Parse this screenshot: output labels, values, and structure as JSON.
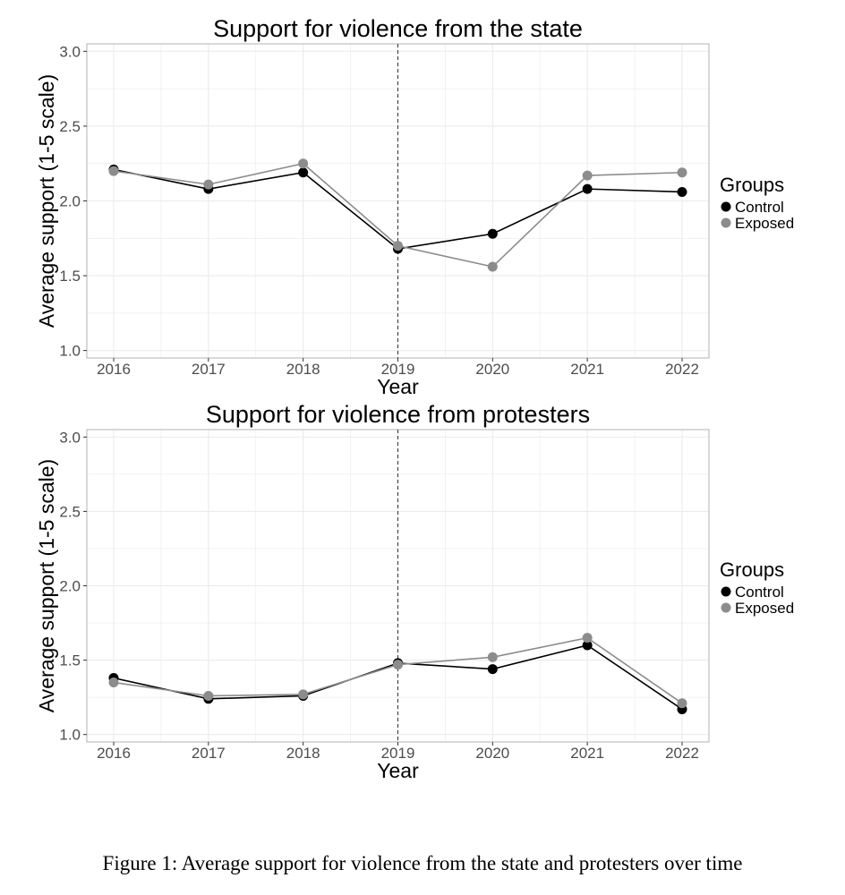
{
  "caption": "Figure 1: Average support for violence from the state and protesters over time",
  "colors": {
    "control": "#000000",
    "exposed": "#8c8c8c",
    "grid": "#ebebeb",
    "frame": "#b3b3b3"
  },
  "chart_data": [
    {
      "type": "line",
      "title": "Support for violence from the state",
      "xlabel": "Year",
      "ylabel": "Average support (1-5 scale)",
      "x": [
        2016,
        2017,
        2018,
        2019,
        2020,
        2021,
        2022
      ],
      "x_tick_labels": [
        "2016",
        "2017",
        "2018",
        "2019",
        "2020",
        "2021",
        "2022"
      ],
      "y_tick_labels": [
        "1.0",
        "1.5",
        "2.0",
        "2.5",
        "3.0"
      ],
      "ylim": [
        0.95,
        3.05
      ],
      "grid": true,
      "vline": 2019,
      "legend_title": "Groups",
      "legend_placement": "right",
      "series": [
        {
          "name": "Control",
          "values": [
            2.21,
            2.08,
            2.19,
            1.68,
            1.78,
            2.08,
            2.06
          ]
        },
        {
          "name": "Exposed",
          "values": [
            2.2,
            2.11,
            2.25,
            1.7,
            1.56,
            2.17,
            2.19
          ]
        }
      ]
    },
    {
      "type": "line",
      "title": "Support for violence from protesters",
      "xlabel": "Year",
      "ylabel": "Average support (1-5 scale)",
      "x": [
        2016,
        2017,
        2018,
        2019,
        2020,
        2021,
        2022
      ],
      "x_tick_labels": [
        "2016",
        "2017",
        "2018",
        "2019",
        "2020",
        "2021",
        "2022"
      ],
      "y_tick_labels": [
        "1.0",
        "1.5",
        "2.0",
        "2.5",
        "3.0"
      ],
      "ylim": [
        0.95,
        3.05
      ],
      "grid": true,
      "vline": 2019,
      "legend_title": "Groups",
      "legend_placement": "right",
      "series": [
        {
          "name": "Control",
          "values": [
            1.38,
            1.24,
            1.26,
            1.48,
            1.44,
            1.6,
            1.17
          ]
        },
        {
          "name": "Exposed",
          "values": [
            1.35,
            1.26,
            1.27,
            1.47,
            1.52,
            1.65,
            1.21
          ]
        }
      ]
    }
  ]
}
